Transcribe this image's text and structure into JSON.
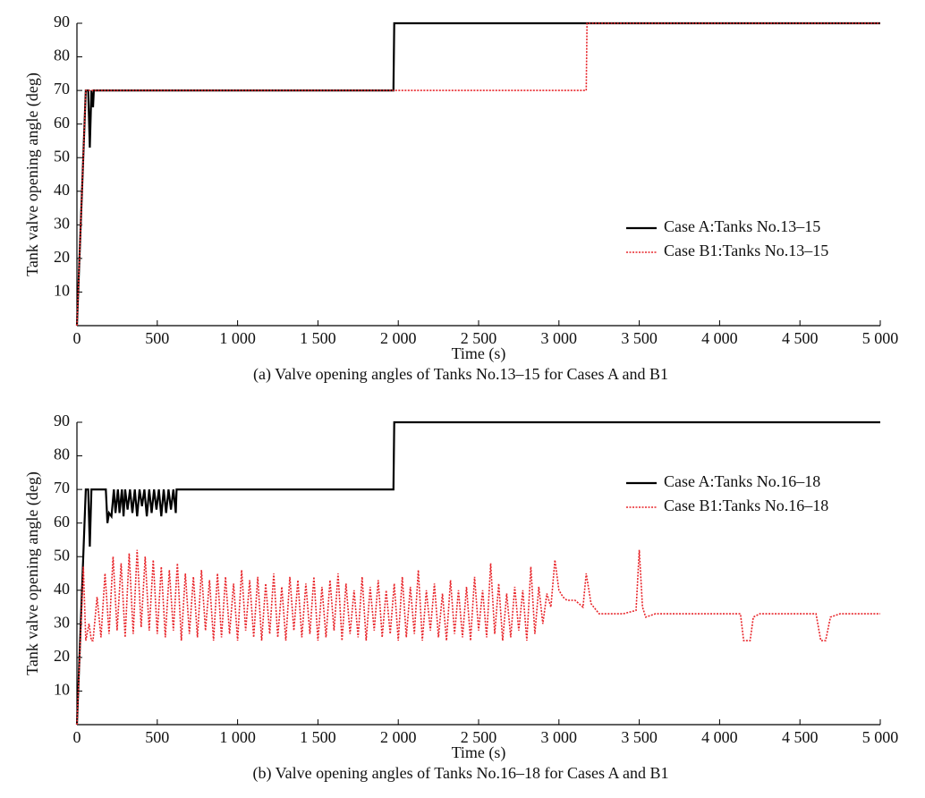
{
  "chart_data": [
    {
      "type": "line",
      "caption": "(a) Valve opening angles of Tanks No.13–15 for Cases A and B1",
      "xlabel": "Time (s)",
      "ylabel": "Tank valve opening angle (deg)",
      "xlim": [
        0,
        5000
      ],
      "ylim": [
        0,
        90
      ],
      "xticks": [
        0,
        500,
        {
          "value": 1000,
          "label": "1 000"
        },
        {
          "value": 1500,
          "label": "1 500"
        },
        {
          "value": 2000,
          "label": "2 000"
        },
        {
          "value": 2500,
          "label": "2 500"
        },
        {
          "value": 3000,
          "label": "3 000"
        },
        {
          "value": 3500,
          "label": "3 500"
        },
        {
          "value": 4000,
          "label": "4 000"
        },
        {
          "value": 4500,
          "label": "4 500"
        },
        {
          "value": 5000,
          "label": "5 000"
        }
      ],
      "yticks": [
        10,
        20,
        30,
        40,
        50,
        60,
        70,
        80,
        90
      ],
      "legend": "center right",
      "series": [
        {
          "name": "Case A:Tanks No.13–15",
          "color": "#000000",
          "linestyle": "solid",
          "x": [
            0,
            55,
            70,
            80,
            90,
            100,
            105,
            1970,
            1975,
            5000
          ],
          "values": [
            0,
            70,
            70,
            53,
            70,
            65,
            70,
            70,
            90,
            90
          ]
        },
        {
          "name": "Case B1:Tanks No.13–15",
          "color": "#e8262b",
          "linestyle": "dotted",
          "x": [
            0,
            55,
            3170,
            3175,
            5000
          ],
          "values": [
            0,
            70,
            70,
            90,
            90
          ]
        }
      ]
    },
    {
      "type": "line",
      "caption": "(b) Valve opening angles of Tanks No.16–18 for Cases A and B1",
      "xlabel": "Time (s)",
      "ylabel": "Tank valve opening angle (deg)",
      "xlim": [
        0,
        5000
      ],
      "ylim": [
        0,
        90
      ],
      "xticks": [
        0,
        500,
        {
          "value": 1000,
          "label": "1 000"
        },
        {
          "value": 1500,
          "label": "1 500"
        },
        {
          "value": 2000,
          "label": "2 000"
        },
        {
          "value": 2500,
          "label": "2 500"
        },
        {
          "value": 3000,
          "label": "3 000"
        },
        {
          "value": 3500,
          "label": "3 500"
        },
        {
          "value": 4000,
          "label": "4 000"
        },
        {
          "value": 4500,
          "label": "4 500"
        },
        {
          "value": 5000,
          "label": "5 000"
        }
      ],
      "yticks": [
        10,
        20,
        30,
        40,
        50,
        60,
        70,
        80,
        90
      ],
      "legend": "upper right",
      "series": [
        {
          "name": "Case A:Tanks No.16–18",
          "color": "#000000",
          "linestyle": "solid",
          "x": [
            0,
            55,
            70,
            80,
            90,
            180,
            190,
            200,
            215,
            230,
            240,
            255,
            265,
            280,
            290,
            300,
            315,
            330,
            345,
            360,
            375,
            390,
            405,
            420,
            435,
            450,
            465,
            480,
            495,
            510,
            525,
            540,
            555,
            570,
            585,
            600,
            615,
            620,
            1970,
            1975,
            5000
          ],
          "values": [
            0,
            70,
            70,
            53,
            70,
            70,
            60,
            63,
            62,
            70,
            63,
            70,
            63,
            70,
            62,
            70,
            64,
            70,
            63,
            70,
            62,
            70,
            65,
            70,
            62,
            70,
            63,
            70,
            64,
            70,
            62,
            70,
            63,
            70,
            64,
            70,
            63,
            70,
            70,
            90,
            90
          ]
        },
        {
          "name": "Case B1:Tanks No.16–18",
          "color": "#e8262b",
          "linestyle": "dotted",
          "x": [
            0,
            40,
            55,
            75,
            90,
            100,
            125,
            150,
            175,
            200,
            225,
            250,
            275,
            300,
            325,
            350,
            375,
            400,
            425,
            450,
            475,
            500,
            525,
            550,
            575,
            600,
            625,
            650,
            675,
            700,
            725,
            750,
            775,
            800,
            825,
            850,
            875,
            900,
            925,
            950,
            975,
            1000,
            1025,
            1050,
            1075,
            1100,
            1125,
            1150,
            1175,
            1200,
            1225,
            1250,
            1275,
            1300,
            1325,
            1350,
            1375,
            1400,
            1425,
            1450,
            1475,
            1500,
            1525,
            1550,
            1575,
            1600,
            1625,
            1650,
            1675,
            1700,
            1725,
            1750,
            1775,
            1800,
            1825,
            1850,
            1875,
            1900,
            1925,
            1950,
            1975,
            2000,
            2025,
            2050,
            2075,
            2100,
            2125,
            2150,
            2175,
            2200,
            2225,
            2250,
            2275,
            2300,
            2325,
            2350,
            2375,
            2400,
            2425,
            2450,
            2475,
            2500,
            2525,
            2550,
            2575,
            2600,
            2625,
            2650,
            2675,
            2700,
            2725,
            2750,
            2775,
            2800,
            2825,
            2850,
            2875,
            2900,
            2925,
            2950,
            2975,
            3000,
            3025,
            3050,
            3100,
            3150,
            3170,
            3200,
            3250,
            3400,
            3480,
            3500,
            3520,
            3540,
            3600,
            4100,
            4130,
            4150,
            4190,
            4210,
            4250,
            4600,
            4630,
            4660,
            4690,
            4750,
            5000
          ],
          "values": [
            0,
            47,
            25,
            30,
            25,
            25,
            38,
            26,
            45,
            27,
            50,
            28,
            48,
            26,
            51,
            27,
            52,
            29,
            50,
            28,
            49,
            27,
            47,
            26,
            46,
            28,
            48,
            25,
            45,
            27,
            44,
            26,
            46,
            28,
            43,
            25,
            45,
            26,
            44,
            27,
            42,
            25,
            46,
            28,
            43,
            26,
            44,
            25,
            42,
            27,
            45,
            26,
            41,
            25,
            44,
            28,
            43,
            26,
            42,
            27,
            44,
            25,
            41,
            26,
            43,
            28,
            45,
            25,
            42,
            27,
            40,
            26,
            44,
            25,
            41,
            28,
            43,
            26,
            40,
            27,
            42,
            25,
            44,
            26,
            41,
            27,
            46,
            25,
            40,
            28,
            42,
            26,
            39,
            25,
            43,
            27,
            40,
            26,
            41,
            25,
            44,
            28,
            40,
            26,
            48,
            27,
            42,
            25,
            39,
            26,
            41,
            28,
            40,
            25,
            47,
            27,
            41,
            30,
            39,
            35,
            49,
            40,
            38,
            37,
            37,
            35,
            45,
            36,
            33,
            33,
            34,
            52,
            35,
            32,
            33,
            33,
            33,
            25,
            25,
            32,
            33,
            33,
            25,
            25,
            32,
            33,
            33
          ]
        }
      ]
    }
  ]
}
